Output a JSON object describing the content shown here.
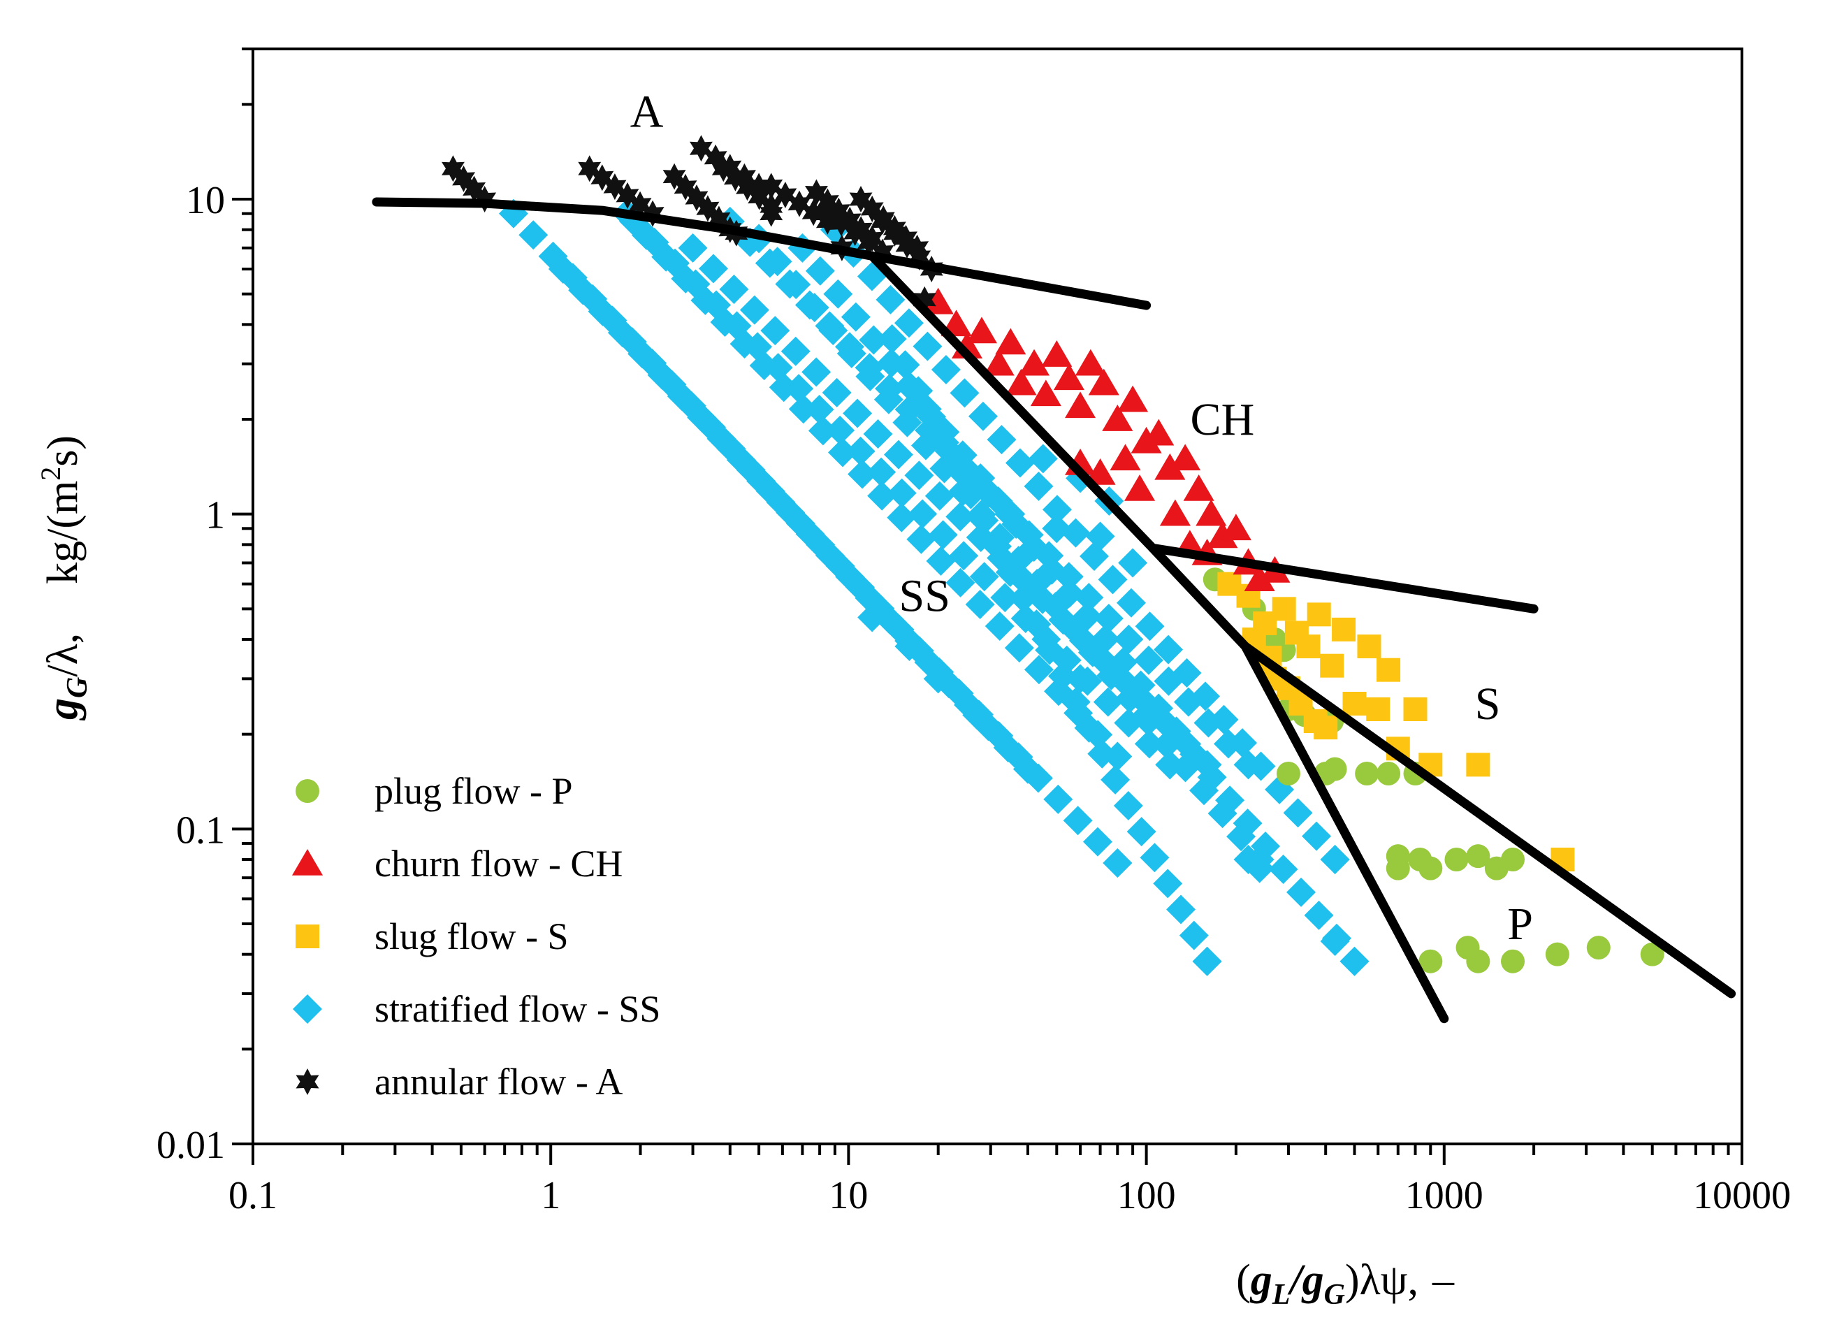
{
  "chart_data": {
    "type": "scatter",
    "title": "",
    "xscale": "log",
    "yscale": "log",
    "xlim": [
      0.1,
      10000
    ],
    "ylim": [
      0.01,
      30
    ],
    "x_ticks": [
      {
        "value": 0.1,
        "label": "0.1"
      },
      {
        "value": 1,
        "label": "1"
      },
      {
        "value": 10,
        "label": "10"
      },
      {
        "value": 100,
        "label": "100"
      },
      {
        "value": 1000,
        "label": "1000"
      },
      {
        "value": 10000,
        "label": "10000"
      }
    ],
    "y_ticks": [
      {
        "value": 0.01,
        "label": "0.01"
      },
      {
        "value": 0.1,
        "label": "0.1"
      },
      {
        "value": 1,
        "label": "1"
      },
      {
        "value": 10,
        "label": "10"
      }
    ],
    "xlabel": {
      "g": "g",
      "L": "L",
      "slash": "/",
      "G": "G",
      "rest": ")λψ,",
      "unit": "–",
      "open": "("
    },
    "ylabel": {
      "g": "g",
      "G": "G",
      "rest": "/λ,",
      "unit_a": "kg/(m",
      "unit_sup": "2",
      "unit_b": "s)"
    },
    "region_labels": [
      {
        "text": "A",
        "x": 2.1,
        "y": 19
      },
      {
        "text": "CH",
        "x": 180,
        "y": 2.0
      },
      {
        "text": "SS",
        "x": 18,
        "y": 0.55
      },
      {
        "text": "S",
        "x": 1400,
        "y": 0.25
      },
      {
        "text": "P",
        "x": 1800,
        "y": 0.05
      }
    ],
    "boundaries": [
      {
        "name": "annular-boundary",
        "points": [
          [
            0.26,
            9.8
          ],
          [
            0.6,
            9.7
          ],
          [
            1.5,
            9.2
          ],
          [
            4,
            8.0
          ],
          [
            12,
            6.6
          ],
          [
            100,
            4.6
          ]
        ]
      },
      {
        "name": "churn-left-boundary",
        "points": [
          [
            12,
            6.6
          ],
          [
            105,
            0.78
          ],
          [
            215,
            0.38
          ]
        ]
      },
      {
        "name": "churn-slug-boundary",
        "points": [
          [
            105,
            0.78
          ],
          [
            2000,
            0.5
          ]
        ]
      },
      {
        "name": "slug-plug-boundary",
        "points": [
          [
            215,
            0.38
          ],
          [
            9200,
            0.03
          ]
        ]
      },
      {
        "name": "stratified-plug-boundary",
        "points": [
          [
            215,
            0.38
          ],
          [
            1000,
            0.025
          ]
        ]
      }
    ],
    "legend": [
      {
        "label": "plug flow - P",
        "color": "#99c93c",
        "marker": "circle"
      },
      {
        "label": "churn flow - CH",
        "color": "#e8151a",
        "marker": "triangle"
      },
      {
        "label": "slug flow - S",
        "color": "#fdc512",
        "marker": "square"
      },
      {
        "label": "stratified flow - SS",
        "color": "#20c0ee",
        "marker": "diamond"
      },
      {
        "label": "annular flow - A",
        "color": "#111111",
        "marker": "star"
      }
    ],
    "series": [
      {
        "name": "stratified flow - SS",
        "color": "#20c0ee",
        "marker": "diamond",
        "lines": [
          [
            [
              0.75,
              9.0
            ],
            [
              40,
              0.155
            ]
          ],
          [
            [
              1.1,
              6.0
            ],
            [
              80,
              0.078
            ]
          ],
          [
            [
              1.8,
              9.0
            ],
            [
              80,
              0.17
            ]
          ],
          [
            [
              1.9,
              8.5
            ],
            [
              120,
              0.16
            ]
          ],
          [
            [
              3.0,
              7.0
            ],
            [
              160,
              0.16
            ]
          ],
          [
            [
              4.0,
              8.5
            ],
            [
              220,
              0.16
            ]
          ],
          [
            [
              5.0,
              7.5
            ],
            [
              240,
              0.08
            ]
          ],
          [
            [
              7.0,
              7.0
            ],
            [
              500,
              0.038
            ]
          ],
          [
            [
              9.0,
              8.0
            ],
            [
              430,
              0.08
            ]
          ],
          [
            [
              14,
              3.6
            ],
            [
              160,
              0.038
            ]
          ]
        ],
        "points": [
          [
            12,
            0.47
          ],
          [
            16,
            0.38
          ],
          [
            20,
            0.3
          ],
          [
            27,
            0.23
          ],
          [
            40,
            0.155
          ],
          [
            80,
            0.078
          ],
          [
            120,
            0.16
          ],
          [
            160,
            0.038
          ],
          [
            220,
            0.08
          ],
          [
            240,
            0.075
          ],
          [
            430,
            0.044
          ],
          [
            500,
            0.038
          ],
          [
            430,
            0.08
          ],
          [
            100,
            0.23
          ],
          [
            60,
            0.3
          ],
          [
            25,
            1.2
          ],
          [
            35,
            1.0
          ],
          [
            50,
            0.9
          ],
          [
            70,
            0.85
          ],
          [
            90,
            0.7
          ],
          [
            60,
            1.3
          ],
          [
            45,
            1.5
          ],
          [
            75,
            1.1
          ]
        ]
      },
      {
        "name": "churn flow - CH",
        "color": "#e8151a",
        "marker": "triangle",
        "points": [
          [
            20,
            4.7
          ],
          [
            23,
            4.0
          ],
          [
            25,
            3.4
          ],
          [
            28,
            3.8
          ],
          [
            32,
            3.0
          ],
          [
            35,
            3.5
          ],
          [
            38,
            2.6
          ],
          [
            42,
            3.0
          ],
          [
            46,
            2.4
          ],
          [
            50,
            3.2
          ],
          [
            55,
            2.7
          ],
          [
            60,
            2.2
          ],
          [
            65,
            3.0
          ],
          [
            72,
            2.6
          ],
          [
            80,
            2.0
          ],
          [
            90,
            2.3
          ],
          [
            100,
            1.7
          ],
          [
            110,
            1.8
          ],
          [
            120,
            1.4
          ],
          [
            135,
            1.5
          ],
          [
            150,
            1.2
          ],
          [
            165,
            1.0
          ],
          [
            180,
            0.85
          ],
          [
            200,
            0.9
          ],
          [
            220,
            0.7
          ],
          [
            240,
            0.62
          ],
          [
            270,
            0.66
          ],
          [
            60,
            1.45
          ],
          [
            70,
            1.35
          ],
          [
            85,
            1.5
          ],
          [
            95,
            1.2
          ],
          [
            125,
            1.0
          ],
          [
            140,
            0.8
          ],
          [
            160,
            0.75
          ]
        ]
      },
      {
        "name": "slug flow - S",
        "color": "#fdc512",
        "marker": "square",
        "points": [
          [
            190,
            0.6
          ],
          [
            220,
            0.55
          ],
          [
            250,
            0.45
          ],
          [
            290,
            0.5
          ],
          [
            320,
            0.42
          ],
          [
            350,
            0.38
          ],
          [
            380,
            0.48
          ],
          [
            420,
            0.33
          ],
          [
            460,
            0.43
          ],
          [
            500,
            0.25
          ],
          [
            560,
            0.38
          ],
          [
            600,
            0.24
          ],
          [
            650,
            0.32
          ],
          [
            700,
            0.18
          ],
          [
            800,
            0.24
          ],
          [
            900,
            0.16
          ],
          [
            1300,
            0.16
          ],
          [
            2500,
            0.08
          ],
          [
            230,
            0.4
          ],
          [
            260,
            0.35
          ],
          [
            270,
            0.3
          ],
          [
            300,
            0.28
          ],
          [
            330,
            0.25
          ],
          [
            370,
            0.22
          ],
          [
            400,
            0.21
          ]
        ]
      },
      {
        "name": "plug flow - P",
        "color": "#99c93c",
        "marker": "circle",
        "points": [
          [
            170,
            0.62
          ],
          [
            230,
            0.5
          ],
          [
            270,
            0.4
          ],
          [
            290,
            0.37
          ],
          [
            300,
            0.24
          ],
          [
            340,
            0.23
          ],
          [
            380,
            0.22
          ],
          [
            420,
            0.22
          ],
          [
            300,
            0.15
          ],
          [
            400,
            0.15
          ],
          [
            430,
            0.155
          ],
          [
            550,
            0.15
          ],
          [
            650,
            0.15
          ],
          [
            800,
            0.15
          ],
          [
            700,
            0.082
          ],
          [
            700,
            0.075
          ],
          [
            830,
            0.08
          ],
          [
            900,
            0.075
          ],
          [
            1100,
            0.08
          ],
          [
            1300,
            0.082
          ],
          [
            1500,
            0.075
          ],
          [
            1700,
            0.08
          ],
          [
            900,
            0.038
          ],
          [
            1200,
            0.042
          ],
          [
            1300,
            0.038
          ],
          [
            1700,
            0.038
          ],
          [
            2400,
            0.04
          ],
          [
            3300,
            0.042
          ],
          [
            5000,
            0.04
          ]
        ]
      },
      {
        "name": "annular flow - A",
        "color": "#111111",
        "marker": "star",
        "lines": [
          [
            [
              0.47,
              12.5
            ],
            [
              0.6,
              10.0
            ]
          ],
          [
            [
              1.35,
              12.5
            ],
            [
              2.2,
              9.0
            ]
          ],
          [
            [
              2.6,
              11.8
            ],
            [
              4.0,
              8.0
            ]
          ],
          [
            [
              3.2,
              14.5
            ],
            [
              5.0,
              11.0
            ]
          ],
          [
            [
              3.8,
              12.5
            ],
            [
              5.5,
              9.5
            ]
          ],
          [
            [
              5.5,
              11.0
            ],
            [
              8.5,
              8.5
            ]
          ],
          [
            [
              7.8,
              10.5
            ],
            [
              12,
              7.5
            ]
          ],
          [
            [
              11,
              10.0
            ],
            [
              17,
              7.0
            ]
          ],
          [
            [
              8.5,
              9.0
            ],
            [
              13,
              6.8
            ]
          ],
          [
            [
              13,
              8.5
            ],
            [
              19,
              6.0
            ]
          ]
        ],
        "points": [
          [
            4.2,
            7.8
          ],
          [
            5.5,
            9.0
          ],
          [
            9.5,
            7.0
          ],
          [
            18,
            4.8
          ]
        ]
      }
    ]
  }
}
